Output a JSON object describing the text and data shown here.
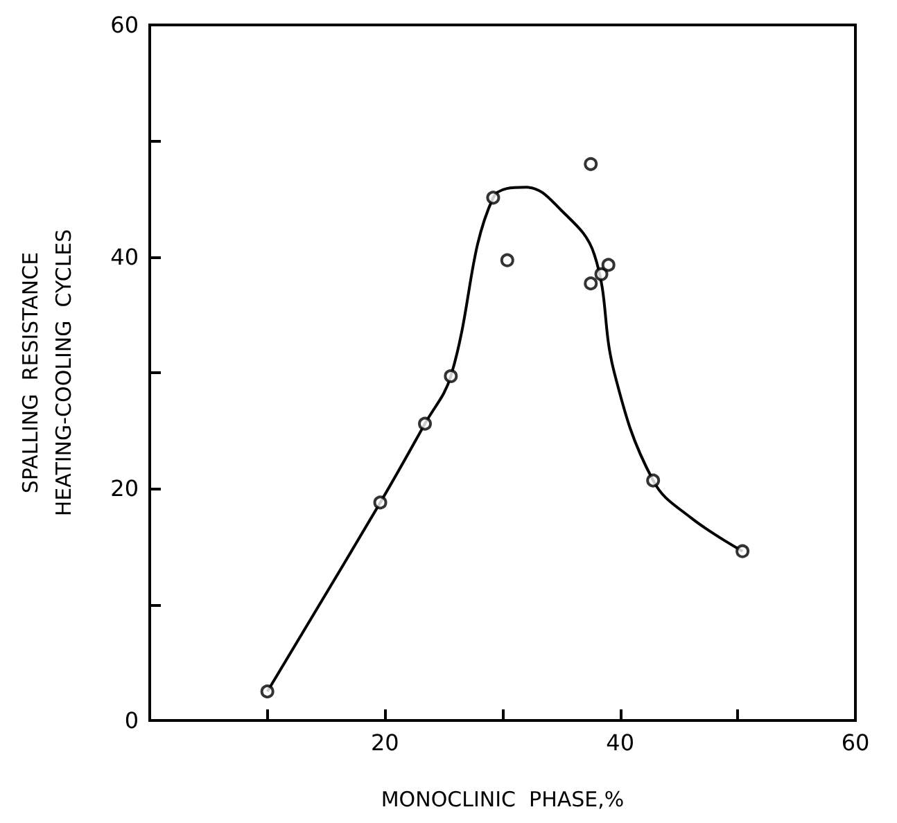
{
  "chart_data": {
    "type": "scatter",
    "xlabel": "MONOCLINIC  PHASE,%",
    "ylabel": "SPALLING  RESISTANCE\nHEATING-COOLING  CYCLES",
    "series": [
      {
        "color": "#000000",
        "marker": "circle",
        "x": [
          10,
          19.6,
          23.4,
          25.6,
          29.2,
          30.4,
          37.5,
          37.5,
          38.4,
          39.0,
          42.8,
          50.4
        ],
        "values": [
          2.5,
          18.8,
          25.6,
          29.7,
          45.1,
          39.7,
          48.0,
          37.7,
          38.5,
          39.3,
          20.7,
          14.6
        ]
      },
      {
        "type": "line",
        "color": "#000000",
        "line_style": "solid",
        "x": [
          10,
          19.6,
          23.4,
          25.6,
          29.2,
          32,
          35,
          37.8,
          39.5,
          42.8,
          46,
          50.4
        ],
        "values": [
          2.5,
          18.8,
          25.6,
          29.7,
          45.1,
          46.0,
          44.0,
          40.2,
          30,
          20.7,
          17.5,
          14.6
        ]
      }
    ],
    "xlim": [
      0,
      60
    ],
    "xticks": [
      {
        "value": 0,
        "label": null
      },
      {
        "value": 10,
        "label": null
      },
      20,
      {
        "value": 30,
        "label": null
      },
      40,
      {
        "value": 50,
        "label": null
      },
      60
    ],
    "ylim": [
      0,
      60
    ],
    "yticks": [
      0,
      {
        "value": 10,
        "label": null
      },
      20,
      {
        "value": 30,
        "label": null
      },
      40,
      {
        "value": 50,
        "label": null
      },
      60
    ],
    "grid": false
  }
}
